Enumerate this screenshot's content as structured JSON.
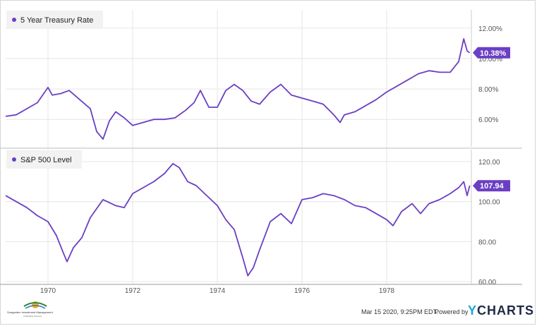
{
  "chart_data": {
    "type": "line",
    "xlim": [
      1969.0,
      1980.0
    ],
    "x_ticks": [
      "1970",
      "1972",
      "1974",
      "1976",
      "1978"
    ],
    "panels": [
      {
        "series_name": "5 Year Treasury Rate",
        "ylim": [
          4.2,
          13.2
        ],
        "y_tick_labels": [
          "12.00%",
          "10.00%",
          "8.00%",
          "6.00%"
        ],
        "y_tick_values": [
          12,
          10,
          8,
          6
        ],
        "current_value": 10.38,
        "current_label": "10.38%",
        "x": [
          1969.0,
          1969.25,
          1969.5,
          1969.75,
          1970.0,
          1970.1,
          1970.3,
          1970.5,
          1970.75,
          1971.0,
          1971.15,
          1971.3,
          1971.45,
          1971.6,
          1971.8,
          1972.0,
          1972.25,
          1972.5,
          1972.75,
          1973.0,
          1973.25,
          1973.45,
          1973.6,
          1973.8,
          1974.0,
          1974.2,
          1974.4,
          1974.6,
          1974.8,
          1975.0,
          1975.25,
          1975.5,
          1975.75,
          1976.0,
          1976.25,
          1976.5,
          1976.75,
          1976.9,
          1977.0,
          1977.25,
          1977.5,
          1977.75,
          1978.0,
          1978.25,
          1978.5,
          1978.75,
          1979.0,
          1979.25,
          1979.5,
          1979.7,
          1979.82,
          1979.9,
          1979.96
        ],
        "y": [
          6.2,
          6.3,
          6.7,
          7.1,
          8.1,
          7.6,
          7.7,
          7.9,
          7.3,
          6.7,
          5.2,
          4.7,
          5.9,
          6.5,
          6.1,
          5.6,
          5.8,
          6.0,
          6.0,
          6.1,
          6.6,
          7.1,
          7.9,
          6.8,
          6.8,
          7.9,
          8.3,
          7.9,
          7.2,
          7.0,
          7.8,
          8.3,
          7.6,
          7.4,
          7.2,
          7.0,
          6.3,
          5.8,
          6.3,
          6.5,
          6.9,
          7.3,
          7.8,
          8.2,
          8.6,
          9.0,
          9.2,
          9.1,
          9.1,
          9.8,
          11.3,
          10.5,
          10.38
        ]
      },
      {
        "series_name": "S&P 500 Level",
        "ylim": [
          59,
          126
        ],
        "y_tick_labels": [
          "120.00",
          "100.00",
          "80.00",
          "60.00"
        ],
        "y_tick_values": [
          120,
          100,
          80,
          60
        ],
        "current_value": 107.94,
        "current_label": "107.94",
        "x": [
          1969.0,
          1969.25,
          1969.5,
          1969.75,
          1970.0,
          1970.2,
          1970.35,
          1970.45,
          1970.6,
          1970.8,
          1971.0,
          1971.3,
          1971.6,
          1971.8,
          1972.0,
          1972.25,
          1972.5,
          1972.75,
          1972.95,
          1973.1,
          1973.3,
          1973.5,
          1973.7,
          1974.0,
          1974.2,
          1974.4,
          1974.6,
          1974.72,
          1974.85,
          1975.0,
          1975.25,
          1975.5,
          1975.75,
          1976.0,
          1976.25,
          1976.5,
          1976.75,
          1977.0,
          1977.25,
          1977.5,
          1977.75,
          1978.0,
          1978.15,
          1978.35,
          1978.6,
          1978.8,
          1979.0,
          1979.25,
          1979.5,
          1979.7,
          1979.82,
          1979.9,
          1979.96
        ],
        "y": [
          103,
          100,
          97,
          93,
          90,
          83,
          75,
          70,
          77,
          82,
          92,
          101,
          98,
          97,
          104,
          107,
          110,
          114,
          119,
          117,
          110,
          108,
          104,
          98,
          91,
          86,
          72,
          63,
          67,
          76,
          90,
          94,
          89,
          101,
          102,
          104,
          103,
          101,
          98,
          97,
          94,
          91,
          88,
          95,
          99,
          94,
          99,
          101,
          104,
          107,
          110,
          103,
          107.94
        ]
      }
    ]
  },
  "footer": {
    "timestamp": "Mar 15 2020, 9:25PM EDT.",
    "powered_by": "Powered by",
    "brand_y": "Y",
    "brand_rest": "CHARTS",
    "logo_text": "Sungarden Investment Management",
    "logo_subtext": "Cultivating Success"
  },
  "colors": {
    "line": "#6a3fc4",
    "badge": "#6a3fc4",
    "grid": "#e6e6e6",
    "legend_bg": "#f2f2f2"
  }
}
